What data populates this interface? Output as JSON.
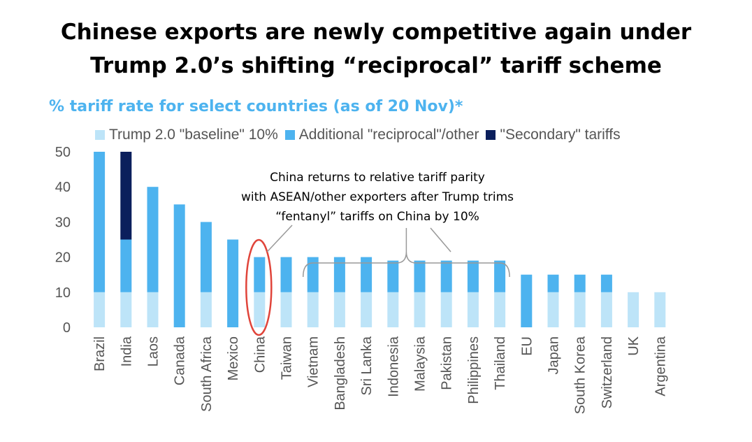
{
  "title_line1": "Chinese exports are newly competitive again under",
  "title_line2": "Trump 2.0’s shifting “reciprocal” tariff scheme",
  "chart_data": {
    "type": "bar",
    "stacked": true,
    "subtitle": "% tariff rate for select countries (as of 20 Nov)*",
    "categories": [
      "Brazil",
      "India",
      "Laos",
      "Canada",
      "South Africa",
      "Mexico",
      "China",
      "Taiwan",
      "Vietnam",
      "Bangladesh",
      "Sri Lanka",
      "Indonesia",
      "Malaysia",
      "Pakistan",
      "Philippines",
      "Thailand",
      "EU",
      "Japan",
      "South Korea",
      "Switzerland",
      "UK",
      "Argentina"
    ],
    "series": [
      {
        "name": "Trump 2.0 \"baseline\" 10%",
        "color": "#bde4f8",
        "values": [
          10,
          10,
          10,
          0,
          10,
          0,
          10,
          10,
          10,
          10,
          10,
          10,
          10,
          10,
          10,
          10,
          0,
          10,
          10,
          10,
          10,
          10
        ]
      },
      {
        "name": "Additional \"reciprocal\"/other",
        "color": "#4db3ef",
        "values": [
          40,
          15,
          30,
          35,
          20,
          25,
          10,
          10,
          10,
          10,
          10,
          9,
          9,
          9,
          9,
          9,
          15,
          5,
          5,
          5,
          0,
          0
        ]
      },
      {
        "name": "\"Secondary\" tariffs",
        "color": "#0b1f5c",
        "values": [
          0,
          25,
          0,
          0,
          0,
          0,
          0,
          0,
          0,
          0,
          0,
          0,
          0,
          0,
          0,
          0,
          0,
          0,
          0,
          0,
          0,
          0
        ]
      }
    ],
    "yticks": [
      "0",
      "10",
      "20",
      "30",
      "40",
      "50"
    ],
    "ylim": [
      0,
      50
    ],
    "legend_position": "top",
    "annotation": {
      "lines": [
        "China returns to relative tariff parity",
        "with ASEAN/other exporters after Trump trims",
        "“fentanyl” tariffs on China by 10%"
      ],
      "highlight_category": "China",
      "bracket_categories": [
        "Vietnam",
        "Thailand"
      ],
      "highlight_color": "#e0443a"
    }
  }
}
